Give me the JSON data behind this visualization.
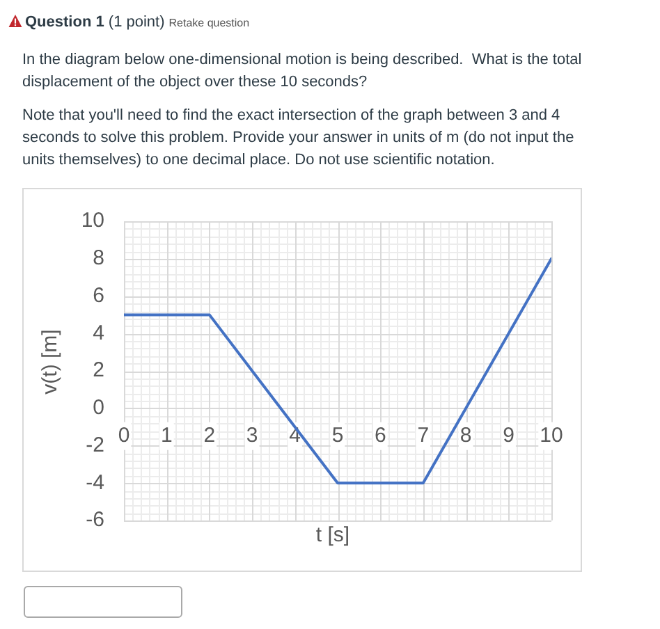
{
  "chart_data": {
    "type": "line",
    "title": "Question 1",
    "subtitle": "(1 point)",
    "annotations": [
      "Retake question",
      "In the diagram below one-dimensional motion is being described.  What is the total displacement of the object over these 10 seconds?",
      "Note that you'll need to find the exact intersection of the graph between 3 and 4 seconds to solve this problem. Provide your answer in units of m (do not input the units themselves) to one decimal place. Do not use scientific notation."
    ],
    "xlabel": "t [s]",
    "ylabel": "v(t) [m]",
    "x": [
      0,
      2,
      5,
      7,
      10
    ],
    "values": [
      5,
      5,
      -4,
      -4,
      8
    ],
    "color": "#4472c4",
    "xlim": [
      0,
      10
    ],
    "xticks": [
      0,
      1,
      2,
      3,
      4,
      5,
      6,
      7,
      8,
      9,
      10
    ],
    "ylim": [
      -6,
      10
    ],
    "yticks": [
      -6,
      -4,
      -2,
      0,
      2,
      4,
      6,
      8,
      10
    ],
    "grid": true,
    "legend": false,
    "marker": "none",
    "line_style": "solid"
  }
}
